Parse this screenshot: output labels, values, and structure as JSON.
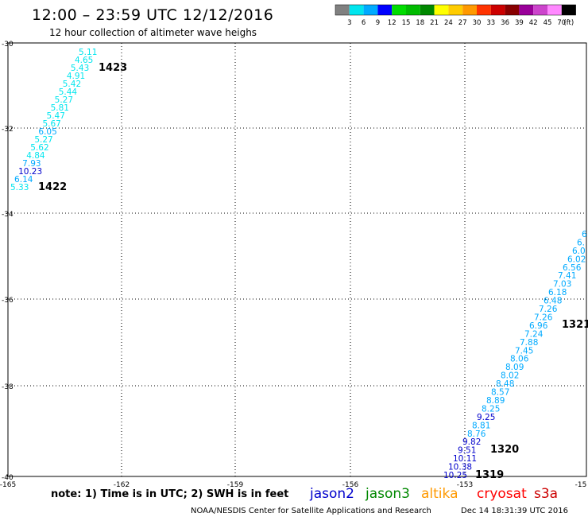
{
  "header": {
    "title": "12:00 – 23:59 UTC 12/12/2016",
    "subtitle": "12 hour collection of altimeter wave heighs"
  },
  "color_scale": {
    "unit": "(ft)",
    "labels": [
      "3",
      "6",
      "9",
      "12",
      "15",
      "18",
      "21",
      "24",
      "27",
      "30",
      "33",
      "36",
      "39",
      "42",
      "45",
      "70"
    ],
    "colors": [
      "#808080",
      "#00e5ee",
      "#00aaff",
      "#0000ff",
      "#00dd00",
      "#00bb00",
      "#008800",
      "#ffff00",
      "#ffcc00",
      "#ff9900",
      "#ff3300",
      "#cc0000",
      "#880000",
      "#990099",
      "#cc44cc",
      "#ff88ff",
      "#000000"
    ]
  },
  "axes": {
    "lon_labels": [
      "-165",
      "-162",
      "-159",
      "-156",
      "-153",
      "-15"
    ],
    "lat_labels": [
      "-30",
      "-32",
      "-34",
      "-36",
      "-38",
      "-40"
    ]
  },
  "tracks": [
    {
      "pass": "1423",
      "pass_color": "#0000cc",
      "points": [
        {
          "v": "5.11",
          "c": "#00e5ee"
        },
        {
          "v": "4.65",
          "c": "#00e5ee"
        },
        {
          "v": "5.43",
          "c": "#00e5ee"
        },
        {
          "v": "4.91",
          "c": "#00e5ee"
        },
        {
          "v": "5.42",
          "c": "#00e5ee"
        },
        {
          "v": "5.44",
          "c": "#00e5ee"
        },
        {
          "v": "5.27",
          "c": "#00e5ee"
        },
        {
          "v": "5.81",
          "c": "#00e5ee"
        },
        {
          "v": "5.47",
          "c": "#00e5ee"
        },
        {
          "v": "5.67",
          "c": "#00e5ee"
        },
        {
          "v": "6.05",
          "c": "#00aaff"
        },
        {
          "v": "5.27",
          "c": "#00e5ee"
        },
        {
          "v": "5.62",
          "c": "#00e5ee"
        },
        {
          "v": "4.84",
          "c": "#00e5ee"
        },
        {
          "v": "7.93",
          "c": "#00aaff"
        },
        {
          "v": "10.23",
          "c": "#0000cc"
        },
        {
          "v": "6.14",
          "c": "#00aaff"
        },
        {
          "v": "5.33",
          "c": "#00e5ee"
        }
      ]
    },
    {
      "pass": "1422",
      "pass_color": "#0000cc"
    },
    {
      "pass": "1321",
      "pass_color": "#008800",
      "points": [
        {
          "v": "6",
          "c": "#00aaff"
        },
        {
          "v": "6.",
          "c": "#00aaff"
        },
        {
          "v": "6.0",
          "c": "#00aaff"
        },
        {
          "v": "6.02",
          "c": "#00aaff"
        },
        {
          "v": "6.56",
          "c": "#00aaff"
        },
        {
          "v": "7.41",
          "c": "#00aaff"
        },
        {
          "v": "7.03",
          "c": "#00aaff"
        },
        {
          "v": "6.18",
          "c": "#00aaff"
        },
        {
          "v": "6.48",
          "c": "#00aaff"
        },
        {
          "v": "7.26",
          "c": "#00aaff"
        },
        {
          "v": "7.26",
          "c": "#00aaff"
        },
        {
          "v": "6.96",
          "c": "#00aaff"
        },
        {
          "v": "7.24",
          "c": "#00aaff"
        },
        {
          "v": "7.88",
          "c": "#00aaff"
        },
        {
          "v": "7.45",
          "c": "#00aaff"
        },
        {
          "v": "8.06",
          "c": "#00aaff"
        },
        {
          "v": "8.09",
          "c": "#00aaff"
        },
        {
          "v": "8.02",
          "c": "#00aaff"
        },
        {
          "v": "8.48",
          "c": "#00aaff"
        },
        {
          "v": "8.57",
          "c": "#00aaff"
        },
        {
          "v": "8.89",
          "c": "#00aaff"
        },
        {
          "v": "8.25",
          "c": "#00aaff"
        },
        {
          "v": "9.25",
          "c": "#0000cc"
        },
        {
          "v": "8.81",
          "c": "#00aaff"
        },
        {
          "v": "8.76",
          "c": "#00aaff"
        },
        {
          "v": "9.82",
          "c": "#0000cc"
        },
        {
          "v": "9.51",
          "c": "#0000cc"
        },
        {
          "v": "10.11",
          "c": "#0000cc"
        },
        {
          "v": "10.38",
          "c": "#0000cc"
        },
        {
          "v": "10.25",
          "c": "#0000cc"
        }
      ]
    },
    {
      "pass": "1320",
      "pass_color": "#008800"
    },
    {
      "pass": "1319",
      "pass_color": "#008800"
    }
  ],
  "footer": {
    "note": "note:  1) Time is in UTC;  2) SWH is in feet",
    "satellites": [
      {
        "name": "jason2",
        "color": "#0000cc"
      },
      {
        "name": "jason3",
        "color": "#008800"
      },
      {
        "name": "altika",
        "color": "#ff9900"
      },
      {
        "name": "cryosat",
        "color": "#ff0000"
      },
      {
        "name": "s3a",
        "color": "#cc0000"
      }
    ],
    "credit": "NOAA/NESDIS Center for Satellite Applications and Research",
    "timestamp": "Dec 14 18:31:39 UTC 2016"
  }
}
